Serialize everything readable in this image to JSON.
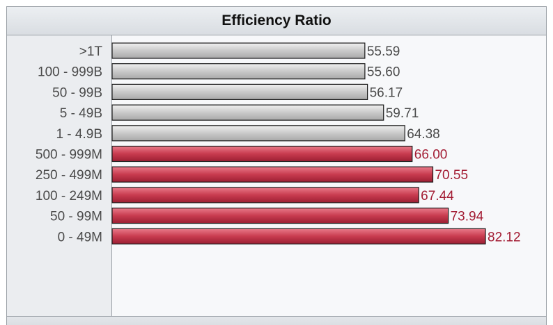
{
  "chart_data": {
    "type": "bar",
    "orientation": "horizontal",
    "title": "Efficiency Ratio",
    "categories": [
      "&gt;1T",
      "100 - 999B",
      "50 - 99B",
      "5 - 49B",
      "1 - 4.9B",
      "500 - 999M",
      "250 - 499M",
      "100 - 249M",
      "50 - 99M",
      "0 - 49M"
    ],
    "values": [
      55.59,
      55.6,
      56.17,
      59.71,
      64.38,
      66.0,
      70.55,
      67.44,
      73.94,
      82.12
    ],
    "value_labels": [
      "55.59",
      "55.60",
      "56.17",
      "59.71",
      "64.38",
      "66.00",
      "70.55",
      "67.44",
      "73.94",
      "82.12"
    ],
    "highlight_from_index": 5,
    "xlim": [
      0,
      82.12
    ],
    "colors": {
      "gray_bar": "#c6c6c6",
      "red_bar": "#c83b4f",
      "gray_value_text": "#4a4a4a",
      "red_value_text": "#a31c33"
    }
  }
}
